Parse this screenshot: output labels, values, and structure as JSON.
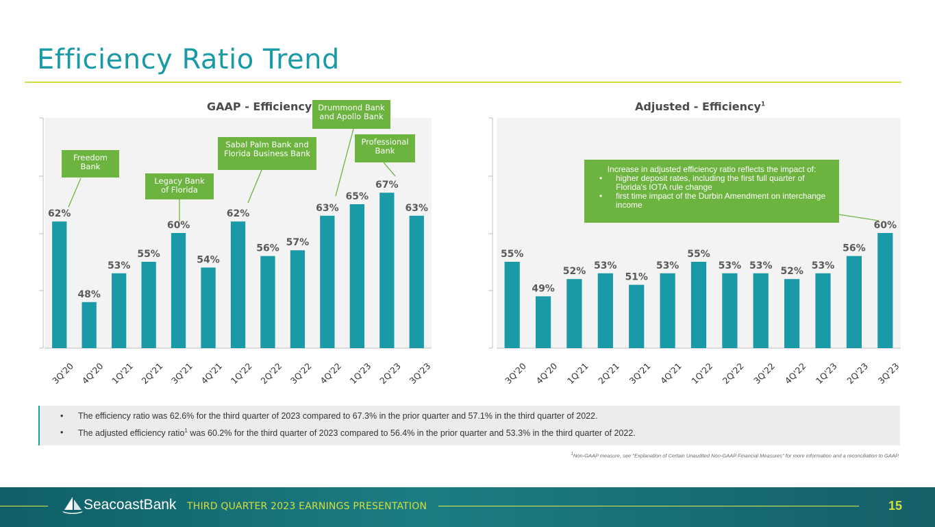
{
  "page": {
    "title": "Efficiency Ratio Trend",
    "footer_text": "THIRD QUARTER 2023 EARNINGS PRESENTATION",
    "page_number": "15",
    "logo_text": "SeacoastBank",
    "footnote_sup": "1",
    "footnote": "Non-GAAP measure, see \"Explanation of Certain Unaudited Non-GAAP Financial Measures\" for more information and a reconciliation to GAAP."
  },
  "summary": {
    "bullet1": "The efficiency ratio was 62.6% for the third quarter of 2023 compared to 67.3% in the prior quarter and 57.1% in the third quarter of 2022.",
    "bullet2_pre": "The adjusted efficiency ratio",
    "bullet2_sup": "1",
    "bullet2_post": " was 60.2% for the third quarter of 2023 compared to 56.4% in the prior quarter and 53.3% in the third quarter of 2022."
  },
  "callouts": {
    "freedom": "Freedom Bank",
    "legacy": "Legacy Bank of Florida",
    "sabal": "Sabal Palm Bank and Florida Business Bank",
    "drummond": "Drummond Bank and Apollo Bank",
    "professional": "Professional Bank"
  },
  "note": {
    "intro": "Increase in adjusted efficiency ratio reflects the impact of:",
    "item1": "higher deposit rates, including the first full quarter of Florida's IOTA rule change",
    "item2": "first time impact of the Durbin Amendment on interchange income"
  },
  "colors": {
    "bar": "#1a9aa6",
    "label": "#595959",
    "callout": "#6db33f",
    "accent": "#d3dc3a"
  },
  "chart_data": [
    {
      "type": "bar",
      "title": "GAAP - Efficiency",
      "categories": [
        "3Q'20",
        "4Q'20",
        "1Q'21",
        "2Q'21",
        "3Q'21",
        "4Q'21",
        "1Q'22",
        "2Q'22",
        "3Q'22",
        "4Q'22",
        "1Q'23",
        "2Q'23",
        "3Q'23"
      ],
      "values": [
        62,
        48,
        53,
        55,
        60,
        54,
        62,
        56,
        57,
        63,
        65,
        67,
        63
      ],
      "labels": [
        "62%",
        "48%",
        "53%",
        "55%",
        "60%",
        "54%",
        "62%",
        "56%",
        "57%",
        "63%",
        "65%",
        "67%",
        "63%"
      ],
      "ylim": [
        40,
        80
      ],
      "grid": false
    },
    {
      "type": "bar",
      "title": "Adjusted - Efficiency",
      "title_sup": "1",
      "categories": [
        "3Q'20",
        "4Q'20",
        "1Q'21",
        "2Q'21",
        "3Q'21",
        "4Q'21",
        "1Q'22",
        "2Q'22",
        "3Q'22",
        "4Q'22",
        "1Q'23",
        "2Q'23",
        "3Q'23"
      ],
      "values": [
        55,
        49,
        52,
        53,
        51,
        53,
        55,
        53,
        53,
        52,
        53,
        56,
        60
      ],
      "labels": [
        "55%",
        "49%",
        "52%",
        "53%",
        "51%",
        "53%",
        "55%",
        "53%",
        "53%",
        "52%",
        "53%",
        "56%",
        "60%"
      ],
      "ylim": [
        40,
        80
      ],
      "grid": false
    }
  ]
}
